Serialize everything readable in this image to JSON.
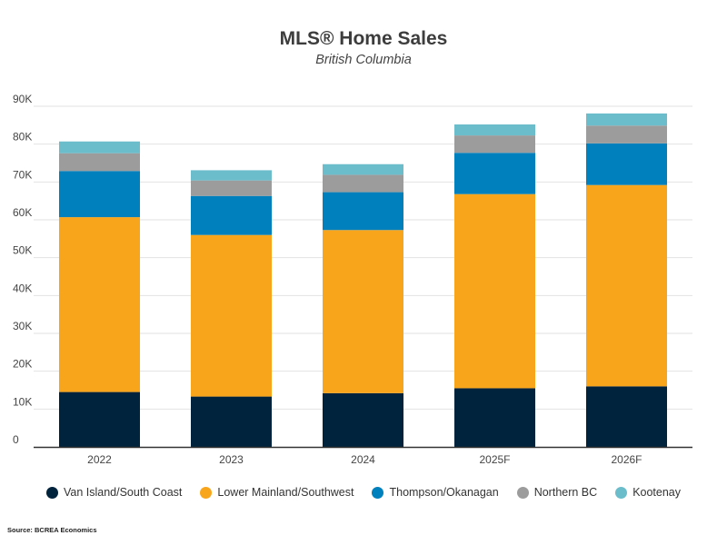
{
  "chart_data": {
    "type": "bar",
    "stacked": true,
    "title": "MLS® Home Sales",
    "subtitle": "British Columbia",
    "xlabel": "",
    "ylabel": "",
    "ylim": [
      0,
      90000
    ],
    "y_ticks": [
      0,
      10000,
      20000,
      30000,
      40000,
      50000,
      60000,
      70000,
      80000,
      90000
    ],
    "y_tick_labels": [
      "0",
      "10K",
      "20K",
      "30K",
      "40K",
      "50K",
      "60K",
      "70K",
      "80K",
      "90K"
    ],
    "grid": true,
    "categories": [
      "2022",
      "2023",
      "2024",
      "2025F",
      "2026F"
    ],
    "series": [
      {
        "name": "Van Island/South Coast",
        "color": "#00233d",
        "values": [
          14500,
          13300,
          14200,
          15500,
          16000
        ]
      },
      {
        "name": "Lower Mainland/Southwest",
        "color": "#f9a51c",
        "values": [
          46200,
          42700,
          43100,
          51300,
          53200
        ]
      },
      {
        "name": "Thompson/Okanagan",
        "color": "#0080bd",
        "values": [
          12200,
          10300,
          10000,
          10900,
          11000
        ]
      },
      {
        "name": "Northern BC",
        "color": "#9c9c9c",
        "values": [
          4700,
          4100,
          4600,
          4600,
          4700
        ]
      },
      {
        "name": "Kootenay",
        "color": "#6bbdcc",
        "values": [
          3100,
          2700,
          2800,
          2900,
          3200
        ]
      }
    ],
    "legend_position": "bottom"
  },
  "source": "Source: BCREA Economics"
}
